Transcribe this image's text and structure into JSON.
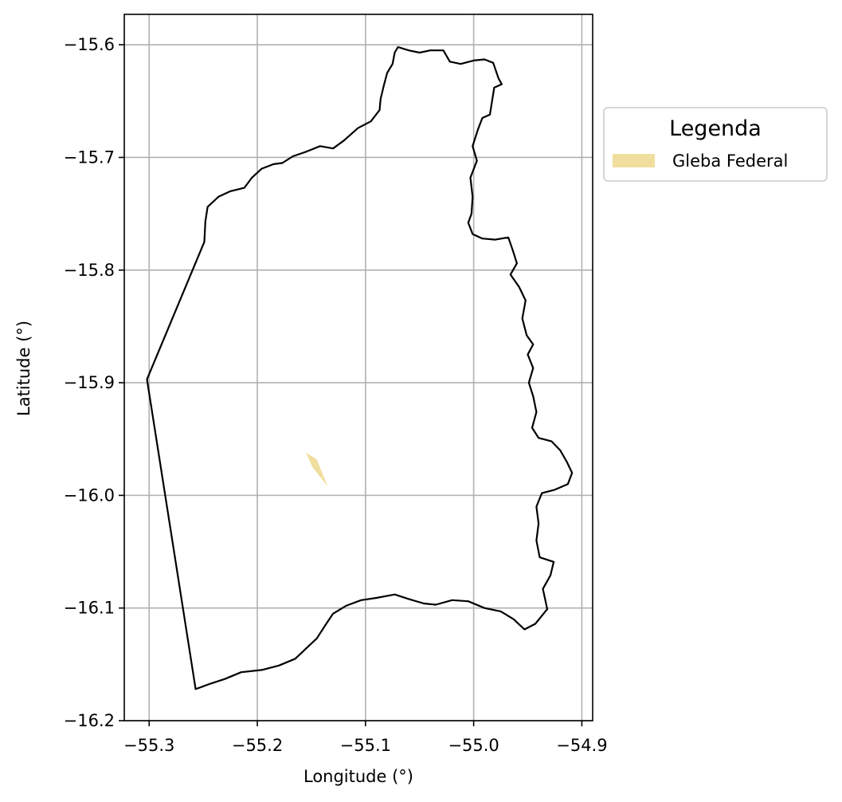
{
  "map": {
    "xlabel": "Longitude (°)",
    "ylabel": "Latitude (°)",
    "xlim": [
      -55.323,
      -54.89
    ],
    "ylim": [
      -16.2,
      -15.573
    ],
    "x_ticks": [
      -55.3,
      -55.2,
      -55.1,
      -55.0,
      -54.9
    ],
    "y_ticks": [
      -15.6,
      -15.7,
      -15.8,
      -15.9,
      -16.0,
      -16.1,
      -16.2
    ],
    "x_tick_labels": [
      "−55.3",
      "−55.2",
      "−55.1",
      "−55.0",
      "−54.9"
    ],
    "y_tick_labels": [
      "−15.6",
      "−15.7",
      "−15.8",
      "−15.9",
      "−16.0",
      "−16.1",
      "−16.2"
    ],
    "grid": true,
    "grid_color": "#b0b0b0",
    "boundary_color": "#000000",
    "boundary": [
      [
        -55.302,
        -15.897
      ],
      [
        -55.249,
        -15.775
      ],
      [
        -55.248,
        -15.757
      ],
      [
        -55.246,
        -15.744
      ],
      [
        -55.236,
        -15.735
      ],
      [
        -55.225,
        -15.73
      ],
      [
        -55.212,
        -15.727
      ],
      [
        -55.205,
        -15.718
      ],
      [
        -55.196,
        -15.71
      ],
      [
        -55.185,
        -15.706
      ],
      [
        -55.177,
        -15.705
      ],
      [
        -55.167,
        -15.699
      ],
      [
        -55.155,
        -15.695
      ],
      [
        -55.142,
        -15.69
      ],
      [
        -55.13,
        -15.692
      ],
      [
        -55.12,
        -15.685
      ],
      [
        -55.107,
        -15.674
      ],
      [
        -55.095,
        -15.668
      ],
      [
        -55.087,
        -15.658
      ],
      [
        -55.086,
        -15.648
      ],
      [
        -55.083,
        -15.636
      ],
      [
        -55.08,
        -15.625
      ],
      [
        -55.075,
        -15.617
      ],
      [
        -55.073,
        -15.607
      ],
      [
        -55.07,
        -15.602
      ],
      [
        -55.06,
        -15.605
      ],
      [
        -55.05,
        -15.607
      ],
      [
        -55.04,
        -15.605
      ],
      [
        -55.028,
        -15.605
      ],
      [
        -55.022,
        -15.615
      ],
      [
        -55.012,
        -15.617
      ],
      [
        -55.0,
        -15.614
      ],
      [
        -54.99,
        -15.613
      ],
      [
        -54.982,
        -15.616
      ],
      [
        -54.977,
        -15.63
      ],
      [
        -54.974,
        -15.635
      ],
      [
        -54.981,
        -15.638
      ],
      [
        -54.983,
        -15.65
      ],
      [
        -54.985,
        -15.662
      ],
      [
        -54.992,
        -15.665
      ],
      [
        -54.996,
        -15.675
      ],
      [
        -55.001,
        -15.69
      ],
      [
        -54.997,
        -15.703
      ],
      [
        -55.003,
        -15.718
      ],
      [
        -55.001,
        -15.735
      ],
      [
        -55.002,
        -15.75
      ],
      [
        -55.005,
        -15.758
      ],
      [
        -55.001,
        -15.768
      ],
      [
        -54.992,
        -15.772
      ],
      [
        -54.98,
        -15.773
      ],
      [
        -54.968,
        -15.771
      ],
      [
        -54.964,
        -15.782
      ],
      [
        -54.96,
        -15.794
      ],
      [
        -54.966,
        -15.804
      ],
      [
        -54.958,
        -15.815
      ],
      [
        -54.952,
        -15.827
      ],
      [
        -54.955,
        -15.843
      ],
      [
        -54.951,
        -15.858
      ],
      [
        -54.945,
        -15.866
      ],
      [
        -54.95,
        -15.875
      ],
      [
        -54.945,
        -15.887
      ],
      [
        -54.949,
        -15.9
      ],
      [
        -54.945,
        -15.912
      ],
      [
        -54.942,
        -15.926
      ],
      [
        -54.946,
        -15.94
      ],
      [
        -54.94,
        -15.949
      ],
      [
        -54.928,
        -15.952
      ],
      [
        -54.92,
        -15.96
      ],
      [
        -54.914,
        -15.97
      ],
      [
        -54.909,
        -15.98
      ],
      [
        -54.913,
        -15.99
      ],
      [
        -54.925,
        -15.995
      ],
      [
        -54.937,
        -15.998
      ],
      [
        -54.942,
        -16.01
      ],
      [
        -54.94,
        -16.025
      ],
      [
        -54.942,
        -16.04
      ],
      [
        -54.939,
        -16.055
      ],
      [
        -54.926,
        -16.059
      ],
      [
        -54.929,
        -16.071
      ],
      [
        -54.936,
        -16.083
      ],
      [
        -54.932,
        -16.101
      ],
      [
        -54.943,
        -16.114
      ],
      [
        -54.953,
        -16.119
      ],
      [
        -54.963,
        -16.11
      ],
      [
        -54.975,
        -16.103
      ],
      [
        -54.99,
        -16.1
      ],
      [
        -55.005,
        -16.094
      ],
      [
        -55.02,
        -16.093
      ],
      [
        -55.035,
        -16.097
      ],
      [
        -55.046,
        -16.096
      ],
      [
        -55.06,
        -16.092
      ],
      [
        -55.073,
        -16.088
      ],
      [
        -55.09,
        -16.091
      ],
      [
        -55.104,
        -16.093
      ],
      [
        -55.118,
        -16.098
      ],
      [
        -55.13,
        -16.105
      ],
      [
        -55.137,
        -16.115
      ],
      [
        -55.145,
        -16.127
      ],
      [
        -55.155,
        -16.136
      ],
      [
        -55.165,
        -16.145
      ],
      [
        -55.18,
        -16.151
      ],
      [
        -55.196,
        -16.155
      ],
      [
        -55.215,
        -16.157
      ],
      [
        -55.23,
        -16.163
      ],
      [
        -55.243,
        -16.167
      ],
      [
        -55.257,
        -16.172
      ],
      [
        -55.302,
        -15.897
      ]
    ],
    "layers": [
      {
        "name": "Gleba Federal",
        "color": "#f0de9e",
        "polygon": [
          [
            -55.155,
            -15.962
          ],
          [
            -55.145,
            -15.968
          ],
          [
            -55.135,
            -15.992
          ],
          [
            -55.149,
            -15.975
          ]
        ]
      }
    ]
  },
  "legend": {
    "title": "Legenda",
    "items": [
      {
        "label": "Gleba Federal",
        "color": "#f0de9e"
      }
    ]
  }
}
